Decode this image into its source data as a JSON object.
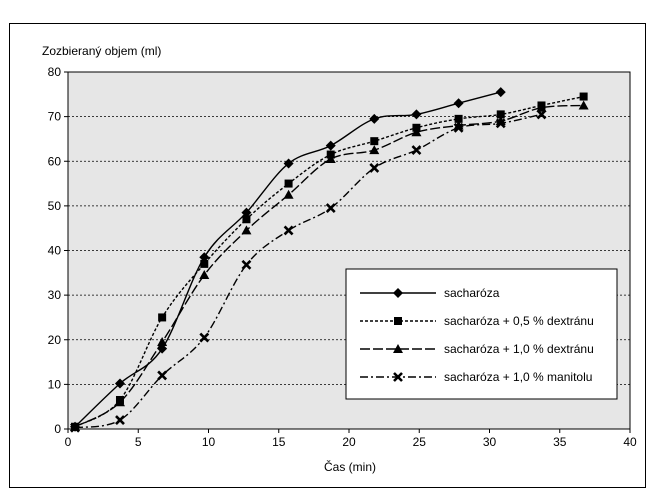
{
  "chart_data": {
    "type": "line",
    "title": "",
    "xlabel": "Čas (min)",
    "ylabel": "Zozbieraný objem (ml)",
    "xlim": [
      0,
      40
    ],
    "ylim": [
      0,
      80
    ],
    "xticks": [
      0,
      5,
      10,
      15,
      20,
      25,
      30,
      35,
      40
    ],
    "yticks": [
      0,
      10,
      20,
      30,
      40,
      50,
      60,
      70,
      80
    ],
    "grid": "horizontal-dashed",
    "legend_position": "lower-right",
    "plot_background": "#e6e6e6",
    "series": [
      {
        "name": "sacharóza",
        "marker": "diamond",
        "dash": "solid",
        "x": [
          0.5,
          3.7,
          6.7,
          9.7,
          12.7,
          15.7,
          18.7,
          21.8,
          24.8,
          27.8,
          30.8
        ],
        "y": [
          0.5,
          10.2,
          18.0,
          38.5,
          48.5,
          59.5,
          63.5,
          69.5,
          70.5,
          73.0,
          75.5
        ]
      },
      {
        "name": "sacharóza + 0,5 % dextránu",
        "marker": "square",
        "dash": "dotted",
        "x": [
          0.5,
          3.7,
          6.7,
          9.7,
          12.7,
          15.7,
          18.7,
          21.8,
          24.8,
          27.8,
          30.8,
          33.7,
          36.7
        ],
        "y": [
          0.5,
          6.5,
          25.0,
          37.0,
          47.0,
          55.0,
          61.5,
          64.5,
          67.5,
          69.5,
          70.5,
          72.5,
          74.5
        ]
      },
      {
        "name": "sacharóza + 1,0 % dextránu",
        "marker": "triangle",
        "dash": "longdash",
        "x": [
          0.5,
          3.7,
          6.7,
          9.7,
          12.7,
          15.7,
          18.7,
          21.8,
          24.8,
          27.8,
          30.8,
          33.7,
          36.7
        ],
        "y": [
          0.5,
          6.0,
          19.5,
          34.5,
          44.5,
          52.5,
          60.5,
          62.5,
          66.5,
          68.0,
          69.0,
          72.0,
          72.5
        ]
      },
      {
        "name": "sacharóza + 1,0 % manitolu",
        "marker": "x",
        "dash": "dashdot",
        "x": [
          0.5,
          3.7,
          6.7,
          9.7,
          12.7,
          15.7,
          18.7,
          21.8,
          24.8,
          27.8,
          30.8,
          33.7
        ],
        "y": [
          0.3,
          2.0,
          12.0,
          20.5,
          36.8,
          44.5,
          49.5,
          58.5,
          62.5,
          67.5,
          68.5,
          70.5
        ]
      }
    ]
  }
}
